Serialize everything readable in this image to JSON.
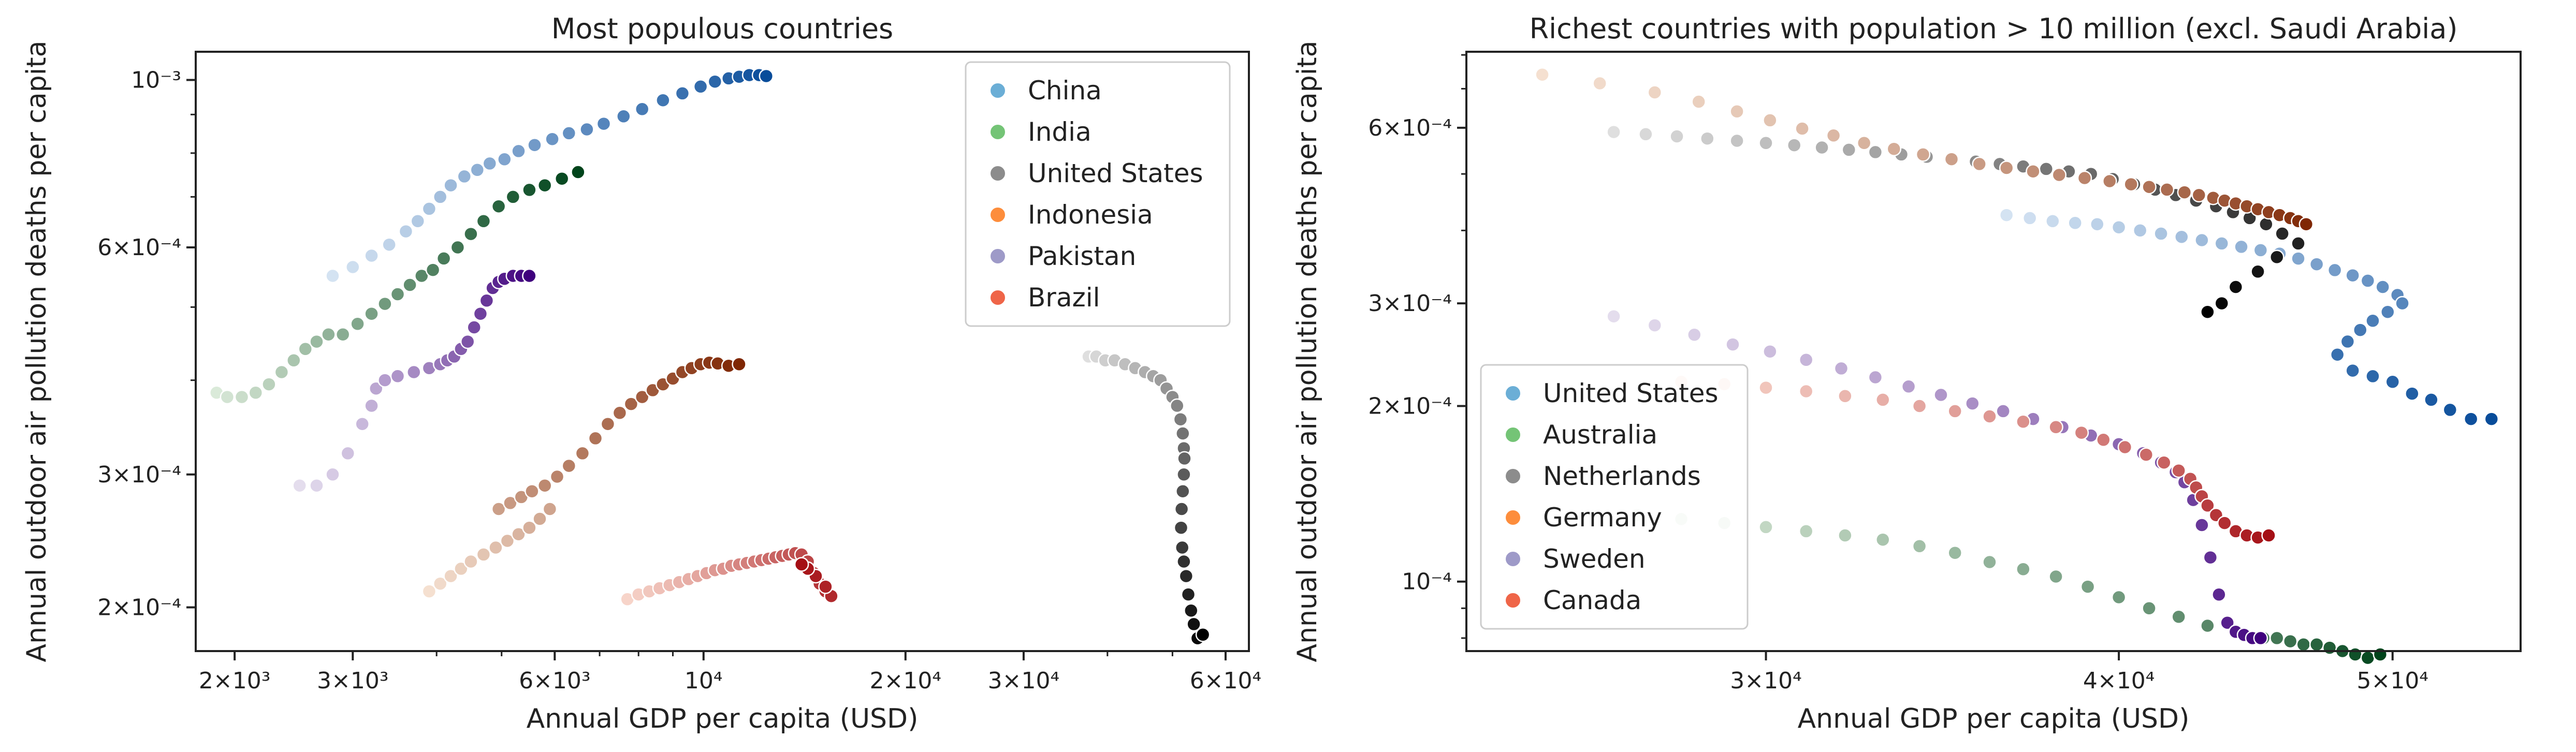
{
  "chart_data": [
    {
      "type": "scatter",
      "title": "Most populous countries",
      "xlabel": "Annual GDP per capita (USD)",
      "ylabel": "Annual outdoor air pollution deaths per capita",
      "xscale": "log",
      "yscale": "log",
      "xlim": [
        1750,
        65000
      ],
      "ylim": [
        0.000175,
        0.00109
      ],
      "legend_position": "top-right",
      "x_ticks": [
        {
          "value": 2000,
          "label": "2×10³"
        },
        {
          "value": 3000,
          "label": "3×10³"
        },
        {
          "value": 6000,
          "label": "6×10³"
        },
        {
          "value": 10000,
          "label": "10⁴"
        },
        {
          "value": 20000,
          "label": "2×10⁴"
        },
        {
          "value": 30000,
          "label": "3×10⁴"
        },
        {
          "value": 60000,
          "label": "6×10⁴"
        }
      ],
      "y_ticks": [
        {
          "value": 0.0002,
          "label": "2×10⁻⁴"
        },
        {
          "value": 0.0003,
          "label": "3×10⁻⁴"
        },
        {
          "value": 0.0006,
          "label": "6×10⁻⁴"
        },
        {
          "value": 0.001,
          "label": "10⁻³"
        }
      ],
      "series": [
        {
          "name": "China",
          "color": "#6baed6",
          "cmap": [
            "#e6f0fa",
            "#084c9a"
          ],
          "x": [
            2800,
            3000,
            3200,
            3400,
            3600,
            3750,
            3900,
            4050,
            4200,
            4400,
            4600,
            4800,
            5050,
            5300,
            5600,
            5950,
            6300,
            6700,
            7100,
            7600,
            8100,
            8700,
            9300,
            9900,
            10400,
            10900,
            11300,
            11700,
            12100,
            12400
          ],
          "y": [
            0.00055,
            0.000565,
            0.000585,
            0.000605,
            0.00063,
            0.00065,
            0.000675,
            0.0007,
            0.000725,
            0.000745,
            0.00076,
            0.000775,
            0.000785,
            0.000805,
            0.00082,
            0.000835,
            0.00085,
            0.00086,
            0.000875,
            0.000895,
            0.000915,
            0.00094,
            0.00096,
            0.00098,
            0.000995,
            0.001005,
            0.00101,
            0.001015,
            0.001015,
            0.001012
          ]
        },
        {
          "name": "India",
          "color": "#74c476",
          "cmap": [
            "#edf8e9",
            "#00441b"
          ],
          "x": [
            1880,
            1950,
            2050,
            2150,
            2250,
            2350,
            2450,
            2550,
            2650,
            2760,
            2900,
            3050,
            3200,
            3350,
            3500,
            3650,
            3800,
            3950,
            4100,
            4300,
            4500,
            4700,
            4950,
            5200,
            5500,
            5800,
            6150,
            6500
          ],
          "y": [
            0.000385,
            0.00038,
            0.00038,
            0.000385,
            0.000395,
            0.00041,
            0.000425,
            0.00044,
            0.00045,
            0.00046,
            0.00046,
            0.000475,
            0.00049,
            0.000505,
            0.00052,
            0.000535,
            0.00055,
            0.00056,
            0.00058,
            0.0006,
            0.000625,
            0.00065,
            0.00068,
            0.0007,
            0.000715,
            0.000725,
            0.00074,
            0.000755
          ]
        },
        {
          "name": "United States",
          "color": "#8c8c8c",
          "cmap": [
            "#f2f2f2",
            "#000000"
          ],
          "x": [
            37500,
            38500,
            39700,
            41000,
            42500,
            44000,
            45500,
            46800,
            48000,
            49000,
            50000,
            50800,
            51400,
            51800,
            52000,
            52100,
            52000,
            51800,
            51600,
            51500,
            51700,
            52000,
            52400,
            52800,
            53300,
            53800,
            54500,
            55500
          ],
          "y": [
            0.00043,
            0.00043,
            0.000425,
            0.000425,
            0.00042,
            0.000415,
            0.00041,
            0.000405,
            0.0004,
            0.00039,
            0.00038,
            0.00037,
            0.000355,
            0.00034,
            0.000325,
            0.000315,
            0.0003,
            0.000285,
            0.00027,
            0.000255,
            0.00024,
            0.00023,
            0.00022,
            0.000208,
            0.000198,
            0.00019,
            0.000182,
            0.000184
          ]
        },
        {
          "name": "Indonesia",
          "color": "#fd8d3c",
          "cmap": [
            "#fff0e2",
            "#7f2704"
          ],
          "x": [
            3900,
            4050,
            4200,
            4350,
            4500,
            4700,
            4900,
            5100,
            5300,
            5500,
            5700,
            5900,
            4950,
            5150,
            5350,
            5550,
            5800,
            6050,
            6300,
            6600,
            6900,
            7200,
            7500,
            7800,
            8100,
            8400,
            8700,
            9000,
            9300,
            9600,
            9900,
            10200,
            10500,
            10900,
            11300
          ],
          "y": [
            0.00021,
            0.000215,
            0.00022,
            0.000225,
            0.00023,
            0.000235,
            0.00024,
            0.000245,
            0.00025,
            0.000255,
            0.000262,
            0.00027,
            0.00027,
            0.000275,
            0.00028,
            0.000285,
            0.00029,
            0.000298,
            0.000308,
            0.00032,
            0.000335,
            0.00035,
            0.000362,
            0.000372,
            0.00038,
            0.000388,
            0.000395,
            0.000402,
            0.00041,
            0.000415,
            0.00042,
            0.000422,
            0.000421,
            0.000418,
            0.00042
          ]
        },
        {
          "name": "Pakistan",
          "color": "#9e9ac8",
          "cmap": [
            "#f2f0f7",
            "#3f007d"
          ],
          "x": [
            2500,
            2650,
            2800,
            2950,
            3100,
            3200,
            3250,
            3350,
            3500,
            3700,
            3900,
            4050,
            4150,
            4250,
            4350,
            4450,
            4550,
            4650,
            4750,
            4850,
            4950,
            5050,
            5200,
            5350,
            5500
          ],
          "y": [
            0.00029,
            0.00029,
            0.0003,
            0.00032,
            0.00035,
            0.00037,
            0.00039,
            0.0004,
            0.000405,
            0.00041,
            0.000415,
            0.00042,
            0.000425,
            0.00043,
            0.00044,
            0.00045,
            0.00047,
            0.00049,
            0.00051,
            0.00053,
            0.00054,
            0.000545,
            0.00055,
            0.00055,
            0.00055
          ]
        },
        {
          "name": "Brazil",
          "color": "#ef6548",
          "cmap": [
            "#fee5d9",
            "#a50f15"
          ],
          "x": [
            7700,
            8000,
            8300,
            8600,
            8900,
            9200,
            9500,
            9800,
            10100,
            10400,
            10700,
            11000,
            11300,
            11600,
            11900,
            12200,
            12500,
            12800,
            13100,
            13400,
            13700,
            14000,
            14300,
            14600,
            14900,
            15200,
            15500,
            15200,
            14700,
            14300,
            14000
          ],
          "y": [
            0.000205,
            0.000208,
            0.00021,
            0.000212,
            0.000214,
            0.000216,
            0.000218,
            0.00022,
            0.000222,
            0.000224,
            0.000225,
            0.000227,
            0.000228,
            0.000229,
            0.00023,
            0.000231,
            0.000232,
            0.000233,
            0.000234,
            0.000235,
            0.000236,
            0.000235,
            0.00023,
            0.000222,
            0.000215,
            0.00021,
            0.000207,
            0.000213,
            0.00022,
            0.000225,
            0.000228
          ]
        }
      ]
    },
    {
      "type": "scatter",
      "title": "Richest countries with population > 10 million (excl. Saudi Arabia)",
      "xlabel": "Annual GDP per capita (USD)",
      "ylabel": "Annual outdoor air pollution deaths per capita",
      "xscale": "log",
      "yscale": "log",
      "xlim": [
        23500,
        55500
      ],
      "ylim": [
        7.6e-05,
        0.00081
      ],
      "legend_position": "bottom-left",
      "x_ticks": [
        {
          "value": 30000,
          "label": "3×10⁴"
        },
        {
          "value": 40000,
          "label": "4×10⁴"
        },
        {
          "value": 50000,
          "label": "5×10⁴"
        }
      ],
      "y_ticks": [
        {
          "value": 0.0001,
          "label": "10⁻⁴"
        },
        {
          "value": 0.0002,
          "label": "2×10⁻⁴"
        },
        {
          "value": 0.0003,
          "label": "3×10⁻⁴"
        },
        {
          "value": 0.0006,
          "label": "6×10⁻⁴"
        }
      ],
      "series": [
        {
          "name": "United States",
          "color": "#6baed6",
          "cmap": [
            "#e6f0fa",
            "#084c9a"
          ],
          "x": [
            36500,
            37200,
            37900,
            38600,
            39300,
            40000,
            40700,
            41400,
            42100,
            42800,
            43500,
            44200,
            44900,
            45600,
            46300,
            47000,
            47700,
            48400,
            49000,
            49600,
            50200,
            50400,
            49800,
            49200,
            48700,
            48200,
            47800,
            48400,
            49200,
            50000,
            50800,
            51600,
            52400,
            53300,
            54200
          ],
          "y": [
            0.000425,
            0.00042,
            0.000415,
            0.000412,
            0.00041,
            0.000405,
            0.0004,
            0.000395,
            0.00039,
            0.000385,
            0.00038,
            0.000375,
            0.00037,
            0.000365,
            0.000358,
            0.00035,
            0.000342,
            0.000335,
            0.000328,
            0.00032,
            0.00031,
            0.0003,
            0.00029,
            0.00028,
            0.00027,
            0.000258,
            0.000245,
            0.00023,
            0.000225,
            0.00022,
            0.00021,
            0.000205,
            0.000197,
            0.00019,
            0.00019
          ]
        },
        {
          "name": "Australia",
          "color": "#74c476",
          "cmap": [
            "#edf8e9",
            "#00441b"
          ],
          "x": [
            27000,
            28000,
            29000,
            30000,
            31000,
            32000,
            33000,
            34000,
            35000,
            36000,
            37000,
            38000,
            39000,
            40000,
            41000,
            42000,
            43000,
            44000,
            45000,
            45500,
            46000,
            46500,
            47000,
            47500,
            48000,
            48500,
            49000,
            49500
          ],
          "y": [
            0.00013,
            0.000128,
            0.000126,
            0.000124,
            0.000122,
            0.00012,
            0.000118,
            0.000115,
            0.000112,
            0.000108,
            0.000105,
            0.000102,
            9.8e-05,
            9.4e-05,
            9e-05,
            8.7e-05,
            8.4e-05,
            8.2e-05,
            8e-05,
            8e-05,
            7.9e-05,
            7.8e-05,
            7.8e-05,
            7.7e-05,
            7.6e-05,
            7.5e-05,
            7.4e-05,
            7.5e-05
          ]
        },
        {
          "name": "Netherlands",
          "color": "#8c8c8c",
          "cmap": [
            "#f2f2f2",
            "#000000"
          ],
          "x": [
            26500,
            27200,
            27900,
            28600,
            29300,
            30000,
            30700,
            31400,
            32100,
            32800,
            33500,
            34200,
            34900,
            35600,
            36300,
            37000,
            37700,
            38400,
            39100,
            39800,
            40500,
            41200,
            41900,
            42600,
            43300,
            43900,
            44500,
            45100,
            45700,
            46300,
            45500,
            44800,
            44000,
            43500,
            43000
          ],
          "y": [
            0.00059,
            0.000585,
            0.00058,
            0.000575,
            0.00057,
            0.000565,
            0.00056,
            0.000555,
            0.00055,
            0.000545,
            0.00054,
            0.000535,
            0.00053,
            0.000525,
            0.00052,
            0.000515,
            0.00051,
            0.000505,
            0.0005,
            0.00049,
            0.00048,
            0.00047,
            0.00046,
            0.00045,
            0.00044,
            0.00043,
            0.00042,
            0.00041,
            0.000395,
            0.00038,
            0.00036,
            0.00034,
            0.00032,
            0.0003,
            0.00029
          ]
        },
        {
          "name": "Germany",
          "color": "#fd8d3c",
          "cmap": [
            "#fff0e2",
            "#7f2704"
          ],
          "x": [
            25000,
            26200,
            27400,
            28400,
            29300,
            30100,
            30900,
            31700,
            32500,
            33300,
            34100,
            34900,
            35700,
            36500,
            37300,
            38100,
            38900,
            39700,
            40400,
            41000,
            41600,
            42200,
            42700,
            43200,
            43600,
            44000,
            44400,
            44800,
            45200,
            45600,
            46000,
            46300,
            46600
          ],
          "y": [
            0.00074,
            0.000715,
            0.00069,
            0.000665,
            0.00064,
            0.000618,
            0.000598,
            0.000582,
            0.000565,
            0.000552,
            0.00054,
            0.00053,
            0.00052,
            0.000512,
            0.000505,
            0.000498,
            0.000492,
            0.000486,
            0.00048,
            0.000475,
            0.00047,
            0.000465,
            0.00046,
            0.000455,
            0.00045,
            0.000445,
            0.00044,
            0.000435,
            0.00043,
            0.000425,
            0.00042,
            0.000415,
            0.00041
          ]
        },
        {
          "name": "Sweden",
          "color": "#9e9ac8",
          "cmap": [
            "#f2f0f7",
            "#3f007d"
          ],
          "x": [
            26500,
            27400,
            28300,
            29200,
            30100,
            31000,
            31900,
            32800,
            33700,
            34600,
            35500,
            36400,
            37300,
            38200,
            39100,
            40000,
            40800,
            41400,
            41900,
            42200,
            42500,
            42800,
            43100,
            43400,
            43700,
            44000,
            44300,
            44600,
            44900
          ],
          "y": [
            0.000285,
            0.000275,
            0.000265,
            0.000255,
            0.000248,
            0.00024,
            0.000232,
            0.000224,
            0.000216,
            0.000209,
            0.000202,
            0.000196,
            0.00019,
            0.000184,
            0.000178,
            0.000172,
            0.000166,
            0.00016,
            0.000154,
            0.000148,
            0.000138,
            0.000125,
            0.00011,
            9.5e-05,
            8.5e-05,
            8.2e-05,
            8.1e-05,
            8e-05,
            8e-05
          ]
        },
        {
          "name": "Canada",
          "color": "#ef6548",
          "cmap": [
            "#fee5d9",
            "#a50f15"
          ],
          "x": [
            28000,
            29000,
            30000,
            31000,
            32000,
            33000,
            34000,
            35000,
            36000,
            37000,
            38000,
            38800,
            39500,
            40200,
            40900,
            41500,
            42000,
            42400,
            42600,
            42800,
            43000,
            43300,
            43600,
            44000,
            44400,
            44800,
            45200
          ],
          "y": [
            0.00022,
            0.000218,
            0.000215,
            0.000212,
            0.000208,
            0.000205,
            0.0002,
            0.000196,
            0.000192,
            0.000188,
            0.000184,
            0.00018,
            0.000175,
            0.00017,
            0.000165,
            0.00016,
            0.000155,
            0.00015,
            0.000145,
            0.00014,
            0.000135,
            0.00013,
            0.000126,
            0.000122,
            0.00012,
            0.000119,
            0.00012
          ]
        }
      ]
    }
  ]
}
